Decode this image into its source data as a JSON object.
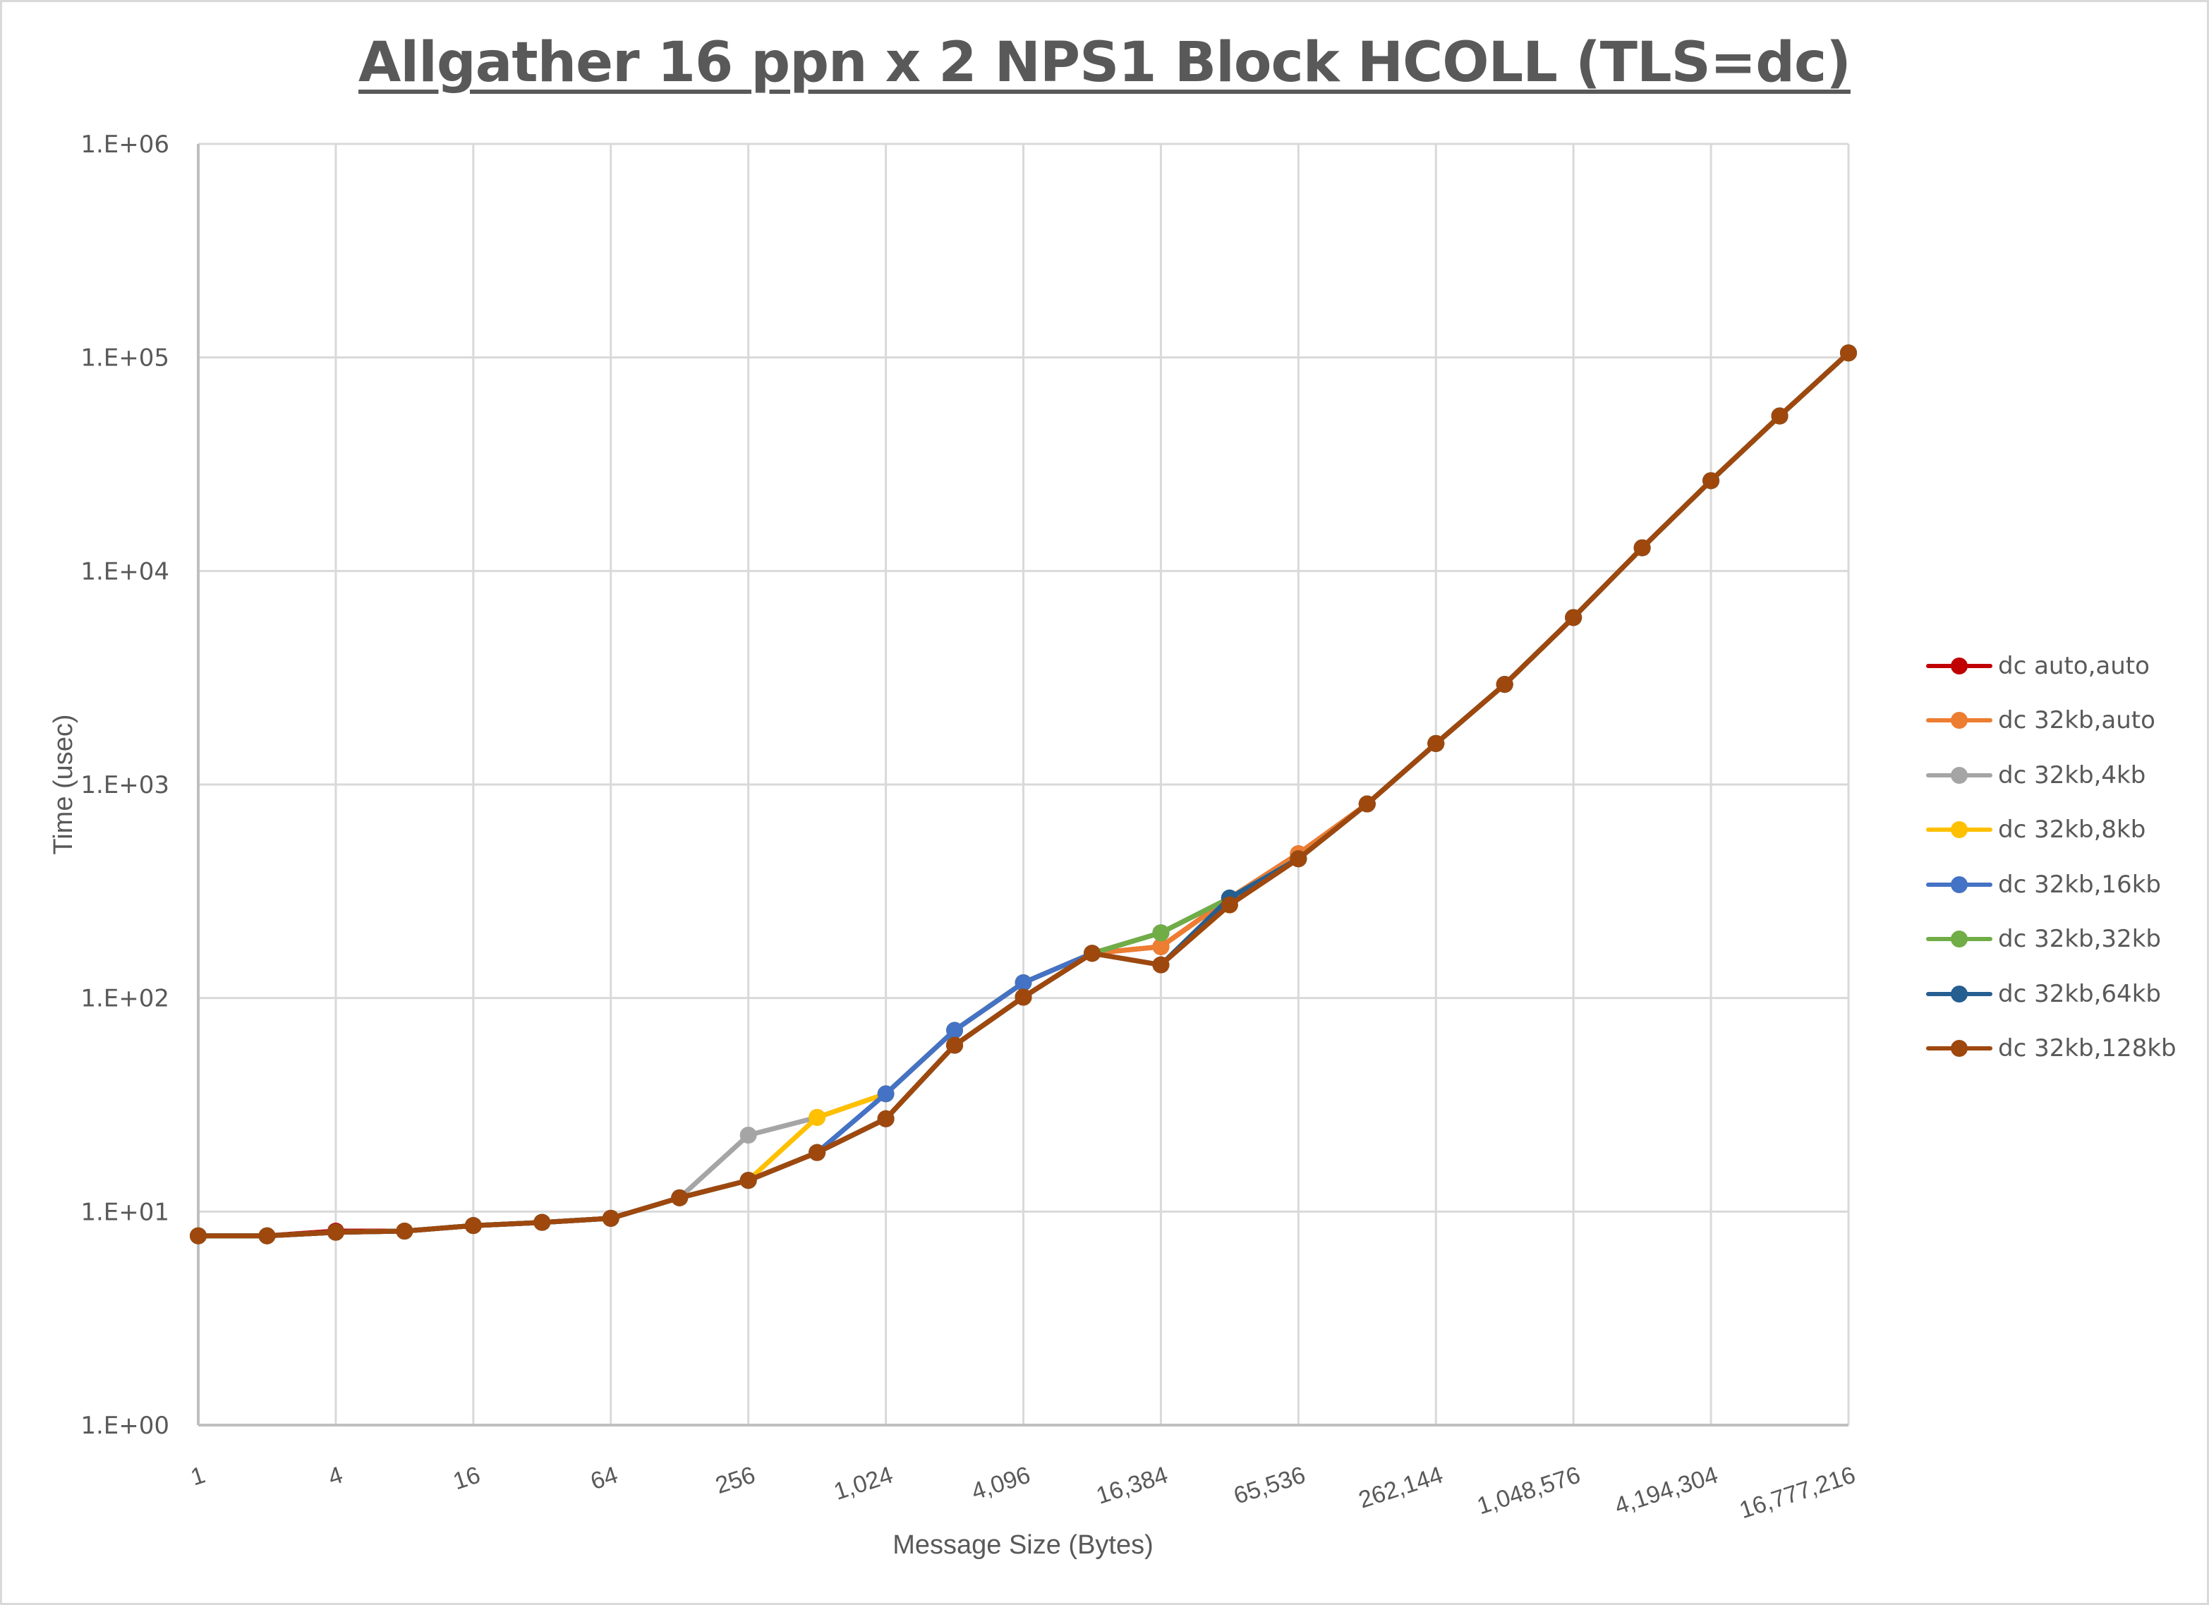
{
  "chart": {
    "title": "Allgather 16 ppn x 2 NPS1 Block HCOLL (TLS=dc)",
    "xlabel": "Message Size (Bytes)",
    "ylabel": "Time (usec)"
  },
  "chart_data": {
    "type": "line",
    "title": "Allgather 16 ppn x 2 NPS1 Block HCOLL (TLS=dc)",
    "xlabel": "Message Size (Bytes)",
    "ylabel": "Time (usec)",
    "xscale": "log2",
    "yscale": "log10",
    "ylim": [
      1,
      1000000
    ],
    "grid": true,
    "legend_position": "right",
    "x": [
      1,
      2,
      4,
      8,
      16,
      32,
      64,
      128,
      256,
      512,
      1024,
      2048,
      4096,
      8192,
      16384,
      32768,
      65536,
      131072,
      262144,
      524288,
      1048576,
      2097152,
      4194304,
      8388608,
      16777216
    ],
    "x_tick_labels": [
      "1",
      "4",
      "16",
      "64",
      "256",
      "1,024",
      "4,096",
      "16,384",
      "65,536",
      "262,144",
      "1,048,576",
      "4,194,304",
      "16,777,216"
    ],
    "y_tick_labels": [
      "1.E+00",
      "1.E+01",
      "1.E+02",
      "1.E+03",
      "1.E+04",
      "1.E+05",
      "1.E+06"
    ],
    "series": [
      {
        "name": "dc auto,auto",
        "color": "#c00000",
        "values": [
          7.7,
          7.7,
          8.1,
          8.1,
          8.6,
          8.9,
          9.3,
          11.6,
          14.0,
          18.9,
          27.2,
          60.1,
          101,
          162,
          174,
          294,
          474,
          811,
          1556,
          2944,
          6053,
          12840,
          26480,
          53200,
          105000
        ]
      },
      {
        "name": "dc 32kb,auto",
        "color": "#ed7d31",
        "values": [
          7.7,
          7.7,
          8.0,
          8.1,
          8.6,
          8.9,
          9.3,
          11.6,
          14.0,
          18.9,
          27.2,
          60.1,
          101,
          162,
          174,
          294,
          474,
          811,
          1556,
          2944,
          6053,
          12840,
          26480,
          53200,
          105000
        ]
      },
      {
        "name": "dc 32kb,4kb",
        "color": "#a5a5a5",
        "values": [
          7.7,
          7.7,
          8.0,
          8.1,
          8.6,
          8.9,
          9.3,
          11.6,
          22.8,
          27.6,
          35.6,
          70.6,
          118,
          162,
          202,
          294,
          449,
          811,
          1556,
          2944,
          6053,
          12840,
          26480,
          53200,
          105000
        ]
      },
      {
        "name": "dc 32kb,8kb",
        "color": "#ffc000",
        "values": [
          7.7,
          7.7,
          8.0,
          8.1,
          8.6,
          8.9,
          9.3,
          11.6,
          14.0,
          27.6,
          35.6,
          70.6,
          118,
          162,
          202,
          294,
          449,
          811,
          1556,
          2944,
          6053,
          12840,
          26480,
          53200,
          105000
        ]
      },
      {
        "name": "dc 32kb,16kb",
        "color": "#4472c4",
        "values": [
          7.7,
          7.7,
          8.0,
          8.1,
          8.6,
          8.9,
          9.3,
          11.6,
          14.0,
          18.9,
          35.6,
          70.6,
          118,
          162,
          202,
          294,
          449,
          811,
          1556,
          2944,
          6053,
          12840,
          26480,
          53200,
          105000
        ]
      },
      {
        "name": "dc 32kb,32kb",
        "color": "#70ad47",
        "values": [
          7.7,
          7.7,
          8.0,
          8.1,
          8.6,
          8.9,
          9.3,
          11.6,
          14.0,
          18.9,
          27.2,
          60.1,
          101,
          162,
          202,
          294,
          449,
          811,
          1556,
          2944,
          6053,
          12840,
          26480,
          53200,
          105000
        ]
      },
      {
        "name": "dc 32kb,64kb",
        "color": "#255e91",
        "values": [
          7.7,
          7.7,
          8.0,
          8.1,
          8.6,
          8.9,
          9.3,
          11.6,
          14.0,
          18.9,
          27.2,
          60.1,
          101,
          162,
          143,
          294,
          449,
          811,
          1556,
          2944,
          6053,
          12840,
          26480,
          53200,
          105000
        ]
      },
      {
        "name": "dc 32kb,128kb",
        "color": "#9e480e",
        "values": [
          7.7,
          7.7,
          8.0,
          8.1,
          8.6,
          8.9,
          9.3,
          11.6,
          14.0,
          18.9,
          27.2,
          60.1,
          101,
          162,
          143,
          273,
          449,
          811,
          1556,
          2944,
          6053,
          12840,
          26480,
          53200,
          105000
        ]
      }
    ]
  },
  "legend": {
    "items": [
      {
        "label": "dc auto,auto",
        "color": "#c00000"
      },
      {
        "label": "dc 32kb,auto",
        "color": "#ed7d31"
      },
      {
        "label": "dc 32kb,4kb",
        "color": "#a5a5a5"
      },
      {
        "label": "dc 32kb,8kb",
        "color": "#ffc000"
      },
      {
        "label": "dc 32kb,16kb",
        "color": "#4472c4"
      },
      {
        "label": "dc 32kb,32kb",
        "color": "#70ad47"
      },
      {
        "label": "dc 32kb,64kb",
        "color": "#255e91"
      },
      {
        "label": "dc 32kb,128kb",
        "color": "#9e480e"
      }
    ]
  },
  "style": {
    "gridline_color": "#d9d9d9",
    "axis_color": "#bfbfbf",
    "text_color": "#595959"
  }
}
